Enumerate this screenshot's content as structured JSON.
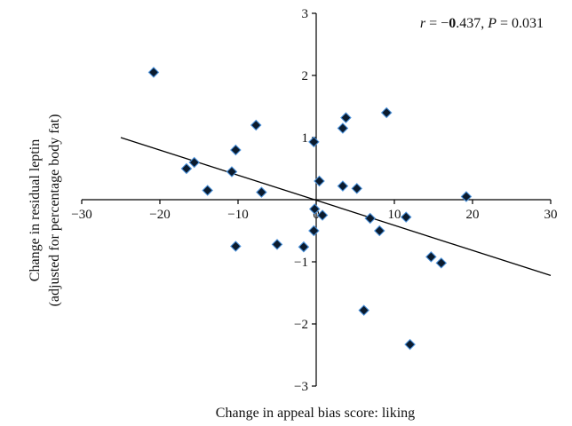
{
  "chart_data": {
    "type": "scatter",
    "xlabel": "Change in appeal bias score: liking",
    "ylabel_line1": "Change in residual leptin",
    "ylabel_line2": "(adjusted for percentage body fat)",
    "xlim": [
      -30,
      30
    ],
    "ylim": [
      -3,
      3
    ],
    "x_ticks": [
      -30,
      -20,
      -10,
      0,
      10,
      20,
      30
    ],
    "y_ticks": [
      -3,
      -2,
      -1,
      0,
      1,
      2,
      3
    ],
    "x_tick_labels": [
      "−30",
      "−20",
      "−10",
      "0",
      "10",
      "20",
      "30"
    ],
    "y_tick_labels": [
      "−3",
      "−2",
      "−1",
      "",
      "1",
      "2",
      "3"
    ],
    "annotation": {
      "r_symbol": "r",
      "r_eq": " = −",
      "r_lead": "0",
      "r_rest": ".437, ",
      "p_symbol": "P",
      "p_rest": " = 0.031"
    },
    "marker": {
      "shape": "diamond",
      "fill": "#0b1b2e",
      "edge": "#4a90d9"
    },
    "trendline": {
      "x": [
        -25,
        30
      ],
      "y": [
        1.0,
        -1.22
      ]
    },
    "points": [
      {
        "x": -20.8,
        "y": 2.05
      },
      {
        "x": -16.6,
        "y": 0.5
      },
      {
        "x": -15.6,
        "y": 0.6
      },
      {
        "x": -13.9,
        "y": 0.15
      },
      {
        "x": -10.8,
        "y": 0.45
      },
      {
        "x": -10.3,
        "y": 0.8
      },
      {
        "x": -10.3,
        "y": -0.75
      },
      {
        "x": -7.7,
        "y": 1.2
      },
      {
        "x": -7.0,
        "y": 0.12
      },
      {
        "x": -5.0,
        "y": -0.72
      },
      {
        "x": -1.6,
        "y": -0.76
      },
      {
        "x": -0.3,
        "y": 0.93
      },
      {
        "x": -0.3,
        "y": -0.5
      },
      {
        "x": -0.2,
        "y": -0.15
      },
      {
        "x": 0.4,
        "y": 0.3
      },
      {
        "x": 0.8,
        "y": -0.25
      },
      {
        "x": 3.4,
        "y": 1.15
      },
      {
        "x": 3.8,
        "y": 1.32
      },
      {
        "x": 3.4,
        "y": 0.22
      },
      {
        "x": 5.2,
        "y": 0.18
      },
      {
        "x": 6.1,
        "y": -1.78
      },
      {
        "x": 6.9,
        "y": -0.3
      },
      {
        "x": 8.1,
        "y": -0.5
      },
      {
        "x": 9.0,
        "y": 1.4
      },
      {
        "x": 11.5,
        "y": -0.28
      },
      {
        "x": 12.0,
        "y": -2.33
      },
      {
        "x": 14.7,
        "y": -0.92
      },
      {
        "x": 16.0,
        "y": -1.02
      },
      {
        "x": 19.2,
        "y": 0.05
      }
    ]
  }
}
